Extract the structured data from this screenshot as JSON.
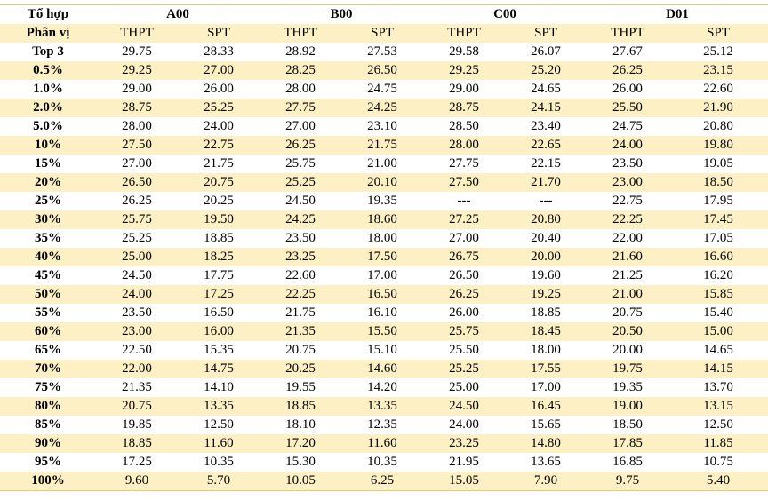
{
  "header": {
    "combo_label": "Tổ hợp",
    "percentile_label": "Phân vị",
    "groups": [
      "A00",
      "B00",
      "C00",
      "D01"
    ],
    "sub": [
      "THPT",
      "SPT"
    ]
  },
  "rows": [
    {
      "label": "Top 3",
      "values": [
        "29.75",
        "28.33",
        "28.92",
        "27.53",
        "29.58",
        "26.07",
        "27.67",
        "25.12"
      ]
    },
    {
      "label": "0.5%",
      "values": [
        "29.25",
        "27.00",
        "28.25",
        "26.50",
        "29.25",
        "25.20",
        "26.25",
        "23.15"
      ]
    },
    {
      "label": "1.0%",
      "values": [
        "29.00",
        "26.00",
        "28.00",
        "24.75",
        "29.00",
        "24.65",
        "26.00",
        "22.60"
      ]
    },
    {
      "label": "2.0%",
      "values": [
        "28.75",
        "25.25",
        "27.75",
        "24.25",
        "28.75",
        "24.15",
        "25.50",
        "21.90"
      ]
    },
    {
      "label": "5.0%",
      "values": [
        "28.00",
        "24.00",
        "27.00",
        "23.10",
        "28.50",
        "23.40",
        "24.75",
        "20.80"
      ]
    },
    {
      "label": "10%",
      "values": [
        "27.50",
        "22.75",
        "26.25",
        "21.75",
        "28.00",
        "22.65",
        "24.00",
        "19.80"
      ]
    },
    {
      "label": "15%",
      "values": [
        "27.00",
        "21.75",
        "25.75",
        "21.00",
        "27.75",
        "22.15",
        "23.50",
        "19.05"
      ]
    },
    {
      "label": "20%",
      "values": [
        "26.50",
        "20.75",
        "25.25",
        "20.10",
        "27.50",
        "21.70",
        "23.00",
        "18.50"
      ]
    },
    {
      "label": "25%",
      "values": [
        "26.25",
        "20.25",
        "24.50",
        "19.35",
        "---",
        "---",
        "22.75",
        "17.95"
      ]
    },
    {
      "label": "30%",
      "values": [
        "25.75",
        "19.50",
        "24.25",
        "18.60",
        "27.25",
        "20.80",
        "22.25",
        "17.45"
      ]
    },
    {
      "label": "35%",
      "values": [
        "25.25",
        "18.85",
        "23.50",
        "18.00",
        "27.00",
        "20.40",
        "22.00",
        "17.05"
      ]
    },
    {
      "label": "40%",
      "values": [
        "25.00",
        "18.25",
        "23.25",
        "17.50",
        "26.75",
        "20.00",
        "21.60",
        "16.60"
      ]
    },
    {
      "label": "45%",
      "values": [
        "24.50",
        "17.75",
        "22.60",
        "17.00",
        "26.50",
        "19.60",
        "21.25",
        "16.20"
      ]
    },
    {
      "label": "50%",
      "values": [
        "24.00",
        "17.25",
        "22.25",
        "16.50",
        "26.25",
        "19.25",
        "21.00",
        "15.85"
      ]
    },
    {
      "label": "55%",
      "values": [
        "23.50",
        "16.50",
        "21.75",
        "16.10",
        "26.00",
        "18.85",
        "20.75",
        "15.40"
      ]
    },
    {
      "label": "60%",
      "values": [
        "23.00",
        "16.00",
        "21.35",
        "15.50",
        "25.75",
        "18.45",
        "20.50",
        "15.00"
      ]
    },
    {
      "label": "65%",
      "values": [
        "22.50",
        "15.35",
        "20.75",
        "15.10",
        "25.50",
        "18.00",
        "20.00",
        "14.65"
      ]
    },
    {
      "label": "70%",
      "values": [
        "22.00",
        "14.75",
        "20.25",
        "14.60",
        "25.25",
        "17.55",
        "19.75",
        "14.15"
      ]
    },
    {
      "label": "75%",
      "values": [
        "21.35",
        "14.10",
        "19.55",
        "14.20",
        "25.00",
        "17.00",
        "19.35",
        "13.70"
      ]
    },
    {
      "label": "80%",
      "values": [
        "20.75",
        "13.35",
        "18.85",
        "13.35",
        "24.50",
        "16.45",
        "19.00",
        "13.15"
      ]
    },
    {
      "label": "85%",
      "values": [
        "19.85",
        "12.50",
        "18.10",
        "12.35",
        "24.00",
        "15.65",
        "18.50",
        "12.50"
      ]
    },
    {
      "label": "90%",
      "values": [
        "18.85",
        "11.60",
        "17.20",
        "11.60",
        "23.25",
        "14.80",
        "17.85",
        "11.85"
      ]
    },
    {
      "label": "95%",
      "values": [
        "17.25",
        "10.35",
        "15.30",
        "10.35",
        "21.95",
        "13.65",
        "16.85",
        "10.75"
      ]
    },
    {
      "label": "100%",
      "values": [
        "9.60",
        "5.70",
        "10.05",
        "6.25",
        "15.05",
        "7.90",
        "9.75",
        "5.40"
      ]
    }
  ],
  "colors": {
    "band": "#fdf0c4",
    "rule": "#e9c96a"
  }
}
